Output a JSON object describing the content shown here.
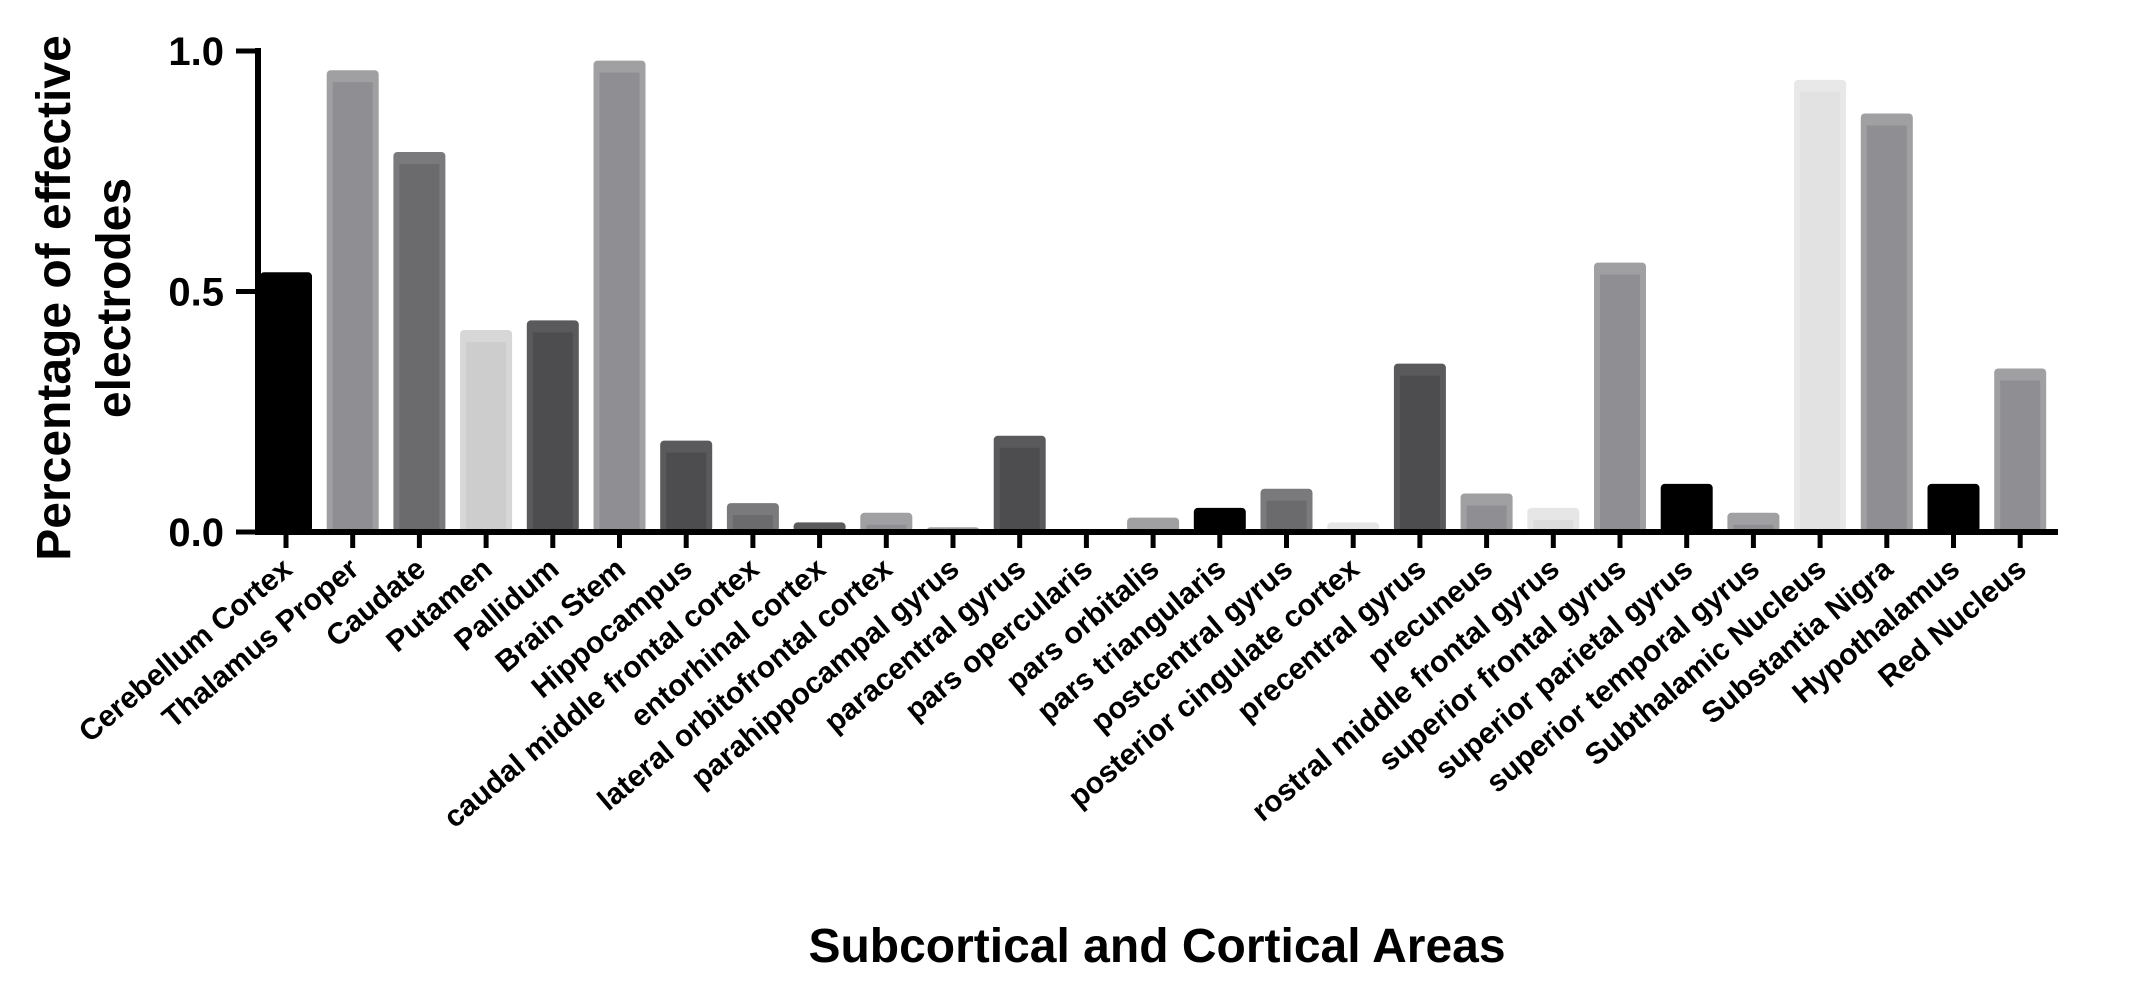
{
  "chart_data": {
    "type": "bar",
    "title": "",
    "xlabel": "Subcortical and Cortical Areas",
    "ylabel_lines": [
      "Percentage of effective",
      "electrodes"
    ],
    "ylim": [
      0,
      1.0
    ],
    "yticks": [
      {
        "value": 0.0,
        "label": "0.0"
      },
      {
        "value": 0.5,
        "label": "0.5"
      },
      {
        "value": 1.0,
        "label": "1.0"
      }
    ],
    "grid": false,
    "categories": [
      "Cerebellum Cortex",
      "Thalamus Proper",
      "Caudate",
      "Putamen",
      "Pallidum",
      "Brain Stem",
      "Hippocampus",
      "caudal middle frontal cortex",
      "entorhinal cortex",
      "lateral orbitofrontal cortex",
      "parahippocampal gyrus",
      "paracentral gyrus",
      "pars opercularis",
      "pars orbitalis",
      "pars triangularis",
      "postcentral gyrus",
      "posterior cingulate cortex",
      "precentral gyrus",
      "precuneus",
      "rostral middle frontal gyrus",
      "superior frontal gyrus",
      "superior parietal gyrus",
      "superior temporal gyrus",
      "Subthalamic Nucleus",
      "Substantia Nigra",
      "Hypothalamus",
      "Red Nucleus"
    ],
    "values": [
      0.54,
      0.96,
      0.79,
      0.42,
      0.44,
      0.98,
      0.19,
      0.06,
      0.02,
      0.04,
      0.01,
      0.2,
      0.0,
      0.03,
      0.05,
      0.09,
      0.02,
      0.35,
      0.08,
      0.05,
      0.56,
      0.1,
      0.04,
      0.94,
      0.87,
      0.1,
      0.34
    ],
    "bar_fill_colors": [
      "#000000",
      "#8e8e93",
      "#6b6b6e",
      "#cdcdcd",
      "#4d4d4f",
      "#8e8e93",
      "#4d4d4f",
      "#6b6b6e",
      "#4d4d4f",
      "#8e8e93",
      "#8e8e93",
      "#4d4d4f",
      "#000000",
      "#8e8e93",
      "#000000",
      "#6b6b6e",
      "#dcdcdc",
      "#4d4d4f",
      "#8e8e93",
      "#dcdcdc",
      "#8e8e93",
      "#000000",
      "#8e8e93",
      "#e2e2e2",
      "#8e8e93",
      "#000000",
      "#8e8e93"
    ],
    "bar_edge_colors": [
      "#000000",
      "#a0a0a3",
      "#7a7a7d",
      "#d7d7d7",
      "#5a5a5c",
      "#a0a0a3",
      "#5a5a5c",
      "#7a7a7d",
      "#5a5a5c",
      "#a0a0a3",
      "#a0a0a3",
      "#5a5a5c",
      "#000000",
      "#a0a0a3",
      "#000000",
      "#7a7a7d",
      "#e6e6e6",
      "#5a5a5c",
      "#a0a0a3",
      "#e6e6e6",
      "#a0a0a3",
      "#000000",
      "#a0a0a3",
      "#e8e8e8",
      "#a0a0a3",
      "#000000",
      "#a0a0a3"
    ]
  }
}
